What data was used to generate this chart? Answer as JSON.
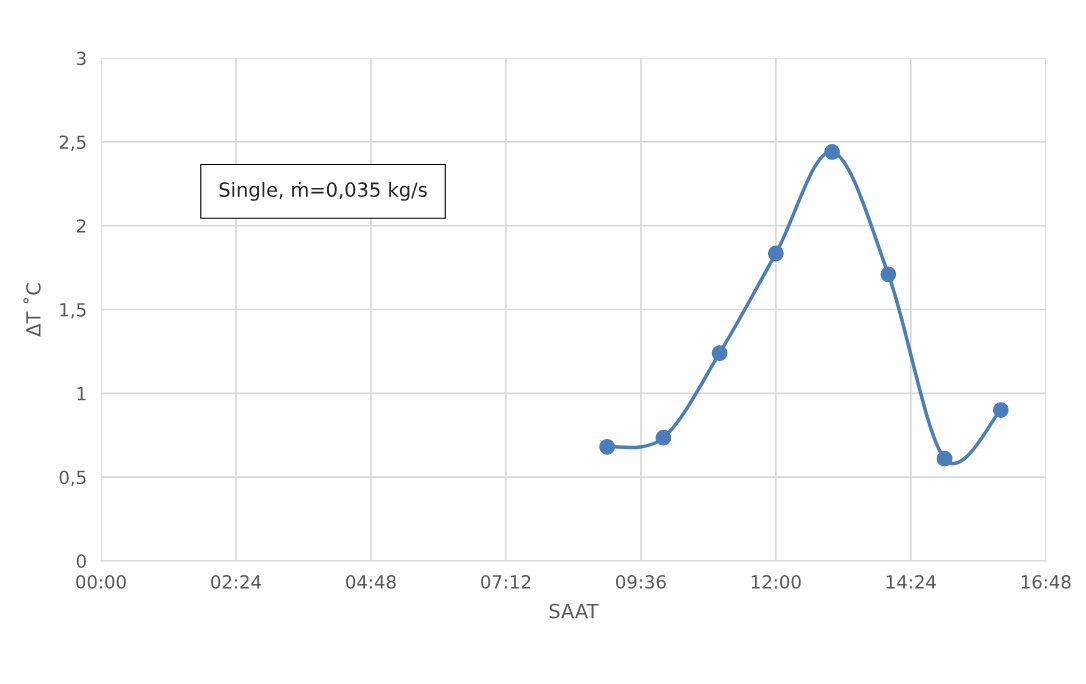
{
  "chart_data": {
    "type": "line",
    "xlabel": "SAAT",
    "ylabel": "ΔT ˚C",
    "annotations": [
      "Single, ṁ=0,035 kg/s"
    ],
    "x": [
      9,
      10,
      11,
      12,
      13,
      14,
      15,
      16
    ],
    "series": [
      {
        "color": "#4a7ebb",
        "values": [
          0.68,
          0.735,
          1.24,
          1.835,
          2.44,
          1.71,
          0.61,
          0.9
        ]
      }
    ],
    "xlim": [
      0,
      16.8
    ],
    "xticks": [
      {
        "value": 0,
        "label": "00:00"
      },
      {
        "value": 2.4,
        "label": "02:24"
      },
      {
        "value": 4.8,
        "label": "04:48"
      },
      {
        "value": 7.2,
        "label": "07:12"
      },
      {
        "value": 9.6,
        "label": "09:36"
      },
      {
        "value": 12,
        "label": "12:00"
      },
      {
        "value": 14.4,
        "label": "14:24"
      },
      {
        "value": 16.8,
        "label": "16:48"
      }
    ],
    "ylim": [
      0,
      3
    ],
    "yticks": [
      0,
      {
        "value": 0.5,
        "label": "0,5"
      },
      1,
      {
        "value": 1.5,
        "label": "1,5"
      },
      2,
      {
        "value": 2.5,
        "label": "2,5"
      },
      3
    ],
    "grid": true,
    "marker": "circle",
    "line_style": "solid",
    "legend": false
  }
}
